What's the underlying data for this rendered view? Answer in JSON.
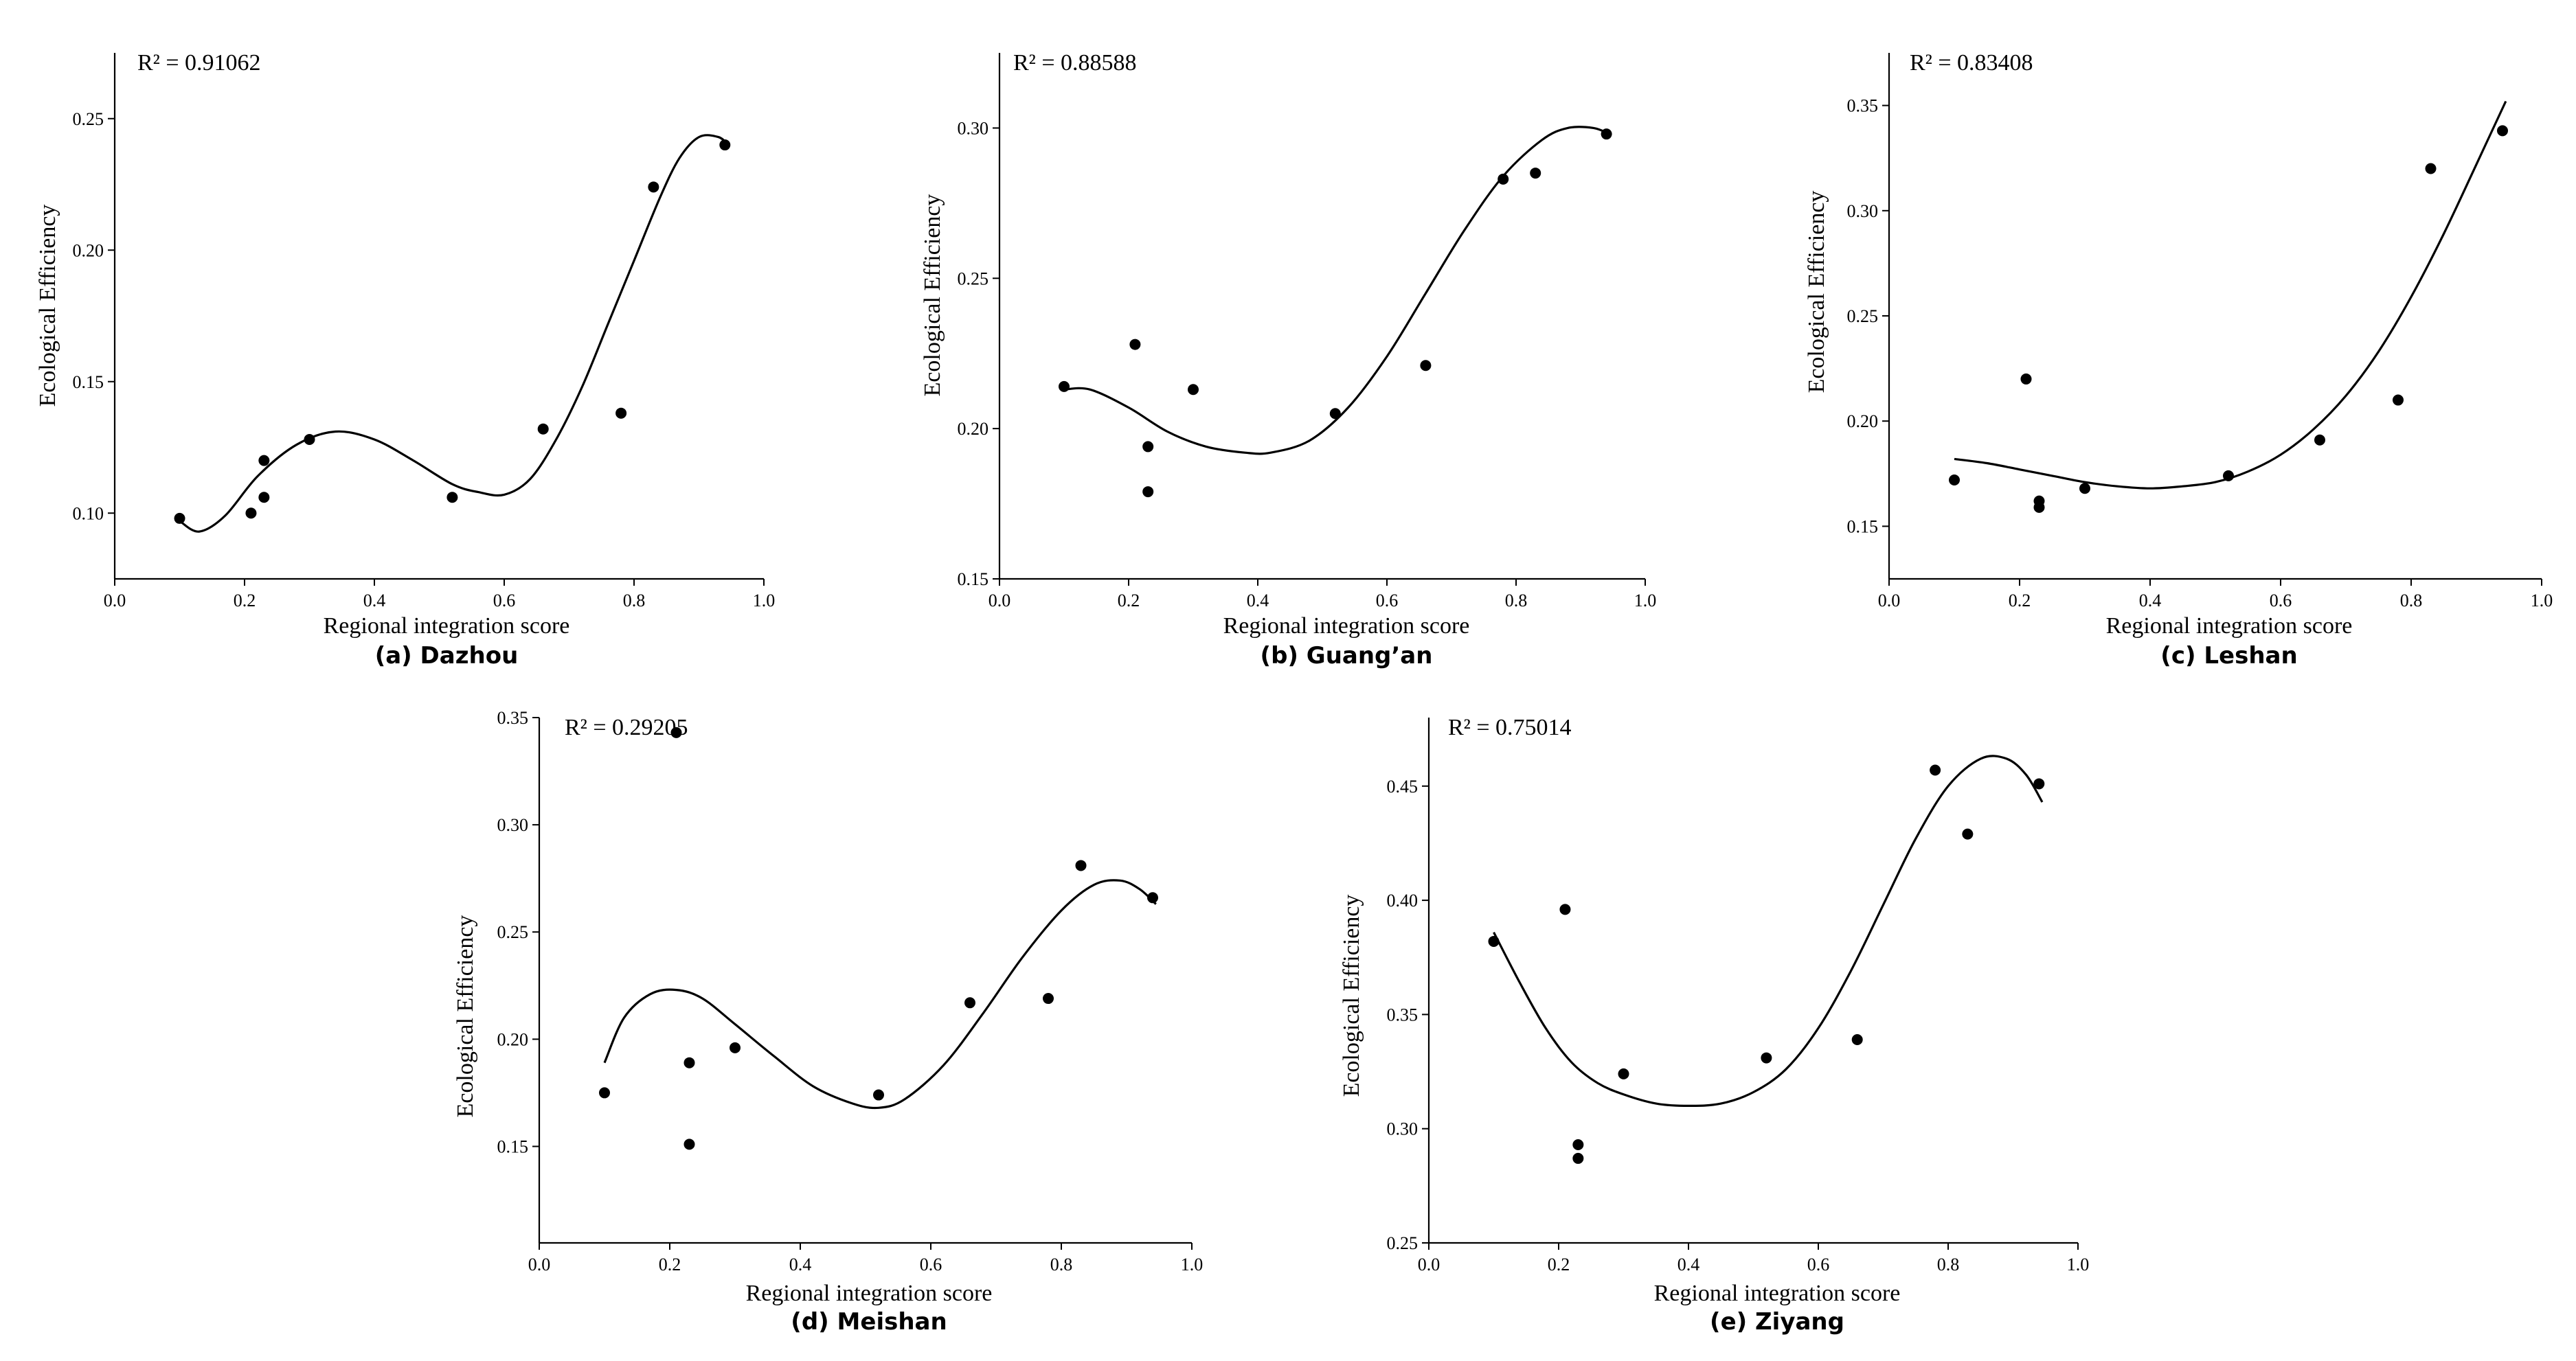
{
  "figure_caption_prefix": "",
  "chart_data": [
    {
      "type": "scatter",
      "id": "a",
      "caption": "(a)  Dazhou",
      "r2_label": "R² = 0.91062",
      "xlabel": "Regional integration score",
      "ylabel": "Ecological Efficiency",
      "xlim": [
        0.0,
        1.0
      ],
      "ylim": [
        0.075,
        0.275
      ],
      "xticks": [
        0.0,
        0.2,
        0.4,
        0.6,
        0.8,
        1.0
      ],
      "xtick_labels": [
        "0.0",
        "0.2",
        "0.4",
        "0.6",
        "0.8",
        "1.0"
      ],
      "yticks": [
        0.1,
        0.15,
        0.2,
        0.25
      ],
      "ytick_labels": [
        "0.10",
        "0.15",
        "0.20",
        "0.25"
      ],
      "x": [
        0.1,
        0.21,
        0.23,
        0.23,
        0.3,
        0.52,
        0.66,
        0.78,
        0.83,
        0.94
      ],
      "y": [
        0.098,
        0.1,
        0.12,
        0.106,
        0.128,
        0.106,
        0.132,
        0.138,
        0.224,
        0.24
      ],
      "fit_curve": {
        "x": [
          0.1,
          0.13,
          0.17,
          0.22,
          0.28,
          0.34,
          0.4,
          0.46,
          0.52,
          0.56,
          0.6,
          0.64,
          0.68,
          0.72,
          0.76,
          0.8,
          0.84,
          0.87,
          0.9,
          0.93,
          0.945
        ],
        "y": [
          0.097,
          0.093,
          0.099,
          0.114,
          0.126,
          0.131,
          0.128,
          0.12,
          0.111,
          0.108,
          0.107,
          0.113,
          0.128,
          0.148,
          0.172,
          0.196,
          0.22,
          0.235,
          0.243,
          0.243,
          0.24
        ]
      }
    },
    {
      "type": "scatter",
      "id": "b",
      "caption": "(b)  Guang’an",
      "r2_label": "R² = 0.88588",
      "xlabel": "Regional integration score",
      "ylabel": "Ecological Efficiency",
      "xlim": [
        0.0,
        1.0
      ],
      "ylim": [
        0.15,
        0.325
      ],
      "xticks": [
        0.0,
        0.2,
        0.4,
        0.6,
        0.8,
        1.0
      ],
      "xtick_labels": [
        "0.0",
        "0.2",
        "0.4",
        "0.6",
        "0.8",
        "1.0"
      ],
      "yticks": [
        0.15,
        0.2,
        0.25,
        0.3
      ],
      "ytick_labels": [
        "0.15",
        "0.20",
        "0.25",
        "0.30"
      ],
      "x": [
        0.1,
        0.21,
        0.23,
        0.23,
        0.3,
        0.52,
        0.66,
        0.78,
        0.83,
        0.94
      ],
      "y": [
        0.214,
        0.228,
        0.194,
        0.179,
        0.213,
        0.205,
        0.221,
        0.283,
        0.285,
        0.298
      ],
      "fit_curve": {
        "x": [
          0.1,
          0.14,
          0.2,
          0.26,
          0.32,
          0.38,
          0.42,
          0.48,
          0.54,
          0.6,
          0.66,
          0.72,
          0.78,
          0.84,
          0.88,
          0.92,
          0.945
        ],
        "y": [
          0.213,
          0.213,
          0.207,
          0.199,
          0.194,
          0.192,
          0.192,
          0.196,
          0.207,
          0.224,
          0.245,
          0.266,
          0.284,
          0.296,
          0.3,
          0.3,
          0.298
        ]
      }
    },
    {
      "type": "scatter",
      "id": "c",
      "caption": "(c)  Leshan",
      "r2_label": "R² = 0.83408",
      "xlabel": "Regional integration score",
      "ylabel": "Ecological Efficiency",
      "xlim": [
        0.0,
        1.0
      ],
      "ylim": [
        0.125,
        0.375
      ],
      "xticks": [
        0.0,
        0.2,
        0.4,
        0.6,
        0.8,
        1.0
      ],
      "xtick_labels": [
        "0.0",
        "0.2",
        "0.4",
        "0.6",
        "0.8",
        "1.0"
      ],
      "yticks": [
        0.15,
        0.2,
        0.25,
        0.3,
        0.35
      ],
      "ytick_labels": [
        "0.15",
        "0.20",
        "0.25",
        "0.30",
        "0.35"
      ],
      "x": [
        0.1,
        0.21,
        0.23,
        0.23,
        0.3,
        0.52,
        0.66,
        0.78,
        0.83,
        0.94
      ],
      "y": [
        0.172,
        0.22,
        0.162,
        0.159,
        0.168,
        0.174,
        0.191,
        0.21,
        0.32,
        0.338
      ],
      "fit_curve": {
        "x": [
          0.1,
          0.15,
          0.2,
          0.25,
          0.3,
          0.35,
          0.4,
          0.45,
          0.5,
          0.55,
          0.6,
          0.65,
          0.7,
          0.75,
          0.8,
          0.85,
          0.9,
          0.945
        ],
        "y": [
          0.182,
          0.18,
          0.177,
          0.174,
          0.171,
          0.169,
          0.168,
          0.169,
          0.171,
          0.176,
          0.184,
          0.196,
          0.212,
          0.233,
          0.259,
          0.289,
          0.322,
          0.352
        ]
      }
    },
    {
      "type": "scatter",
      "id": "d",
      "caption": "(d)  Meishan",
      "r2_label": "R² = 0.29205",
      "xlabel": "Regional integration score",
      "ylabel": "Ecological Efficiency",
      "xlim": [
        0.0,
        1.0
      ],
      "ylim": [
        0.105,
        0.35
      ],
      "xticks": [
        0.0,
        0.2,
        0.4,
        0.6,
        0.8,
        1.0
      ],
      "xtick_labels": [
        "0.0",
        "0.2",
        "0.4",
        "0.6",
        "0.8",
        "1.0"
      ],
      "yticks": [
        0.15,
        0.2,
        0.25,
        0.3,
        0.35
      ],
      "ytick_labels": [
        "0.15",
        "0.20",
        "0.25",
        "0.30",
        "0.35"
      ],
      "x": [
        0.1,
        0.21,
        0.23,
        0.23,
        0.3,
        0.52,
        0.66,
        0.78,
        0.83,
        0.94
      ],
      "y": [
        0.175,
        0.343,
        0.189,
        0.151,
        0.196,
        0.174,
        0.217,
        0.219,
        0.281,
        0.266
      ],
      "fit_curve": {
        "x": [
          0.1,
          0.13,
          0.17,
          0.21,
          0.25,
          0.3,
          0.36,
          0.42,
          0.48,
          0.52,
          0.56,
          0.62,
          0.68,
          0.74,
          0.8,
          0.85,
          0.89,
          0.92,
          0.945
        ],
        "y": [
          0.189,
          0.21,
          0.221,
          0.223,
          0.219,
          0.207,
          0.192,
          0.178,
          0.17,
          0.168,
          0.172,
          0.188,
          0.212,
          0.238,
          0.26,
          0.272,
          0.274,
          0.27,
          0.263
        ]
      }
    },
    {
      "type": "scatter",
      "id": "e",
      "caption": "(e)  Ziyang",
      "r2_label": "R² = 0.75014",
      "xlabel": "Regional integration score",
      "ylabel": "Ecological Efficiency",
      "xlim": [
        0.0,
        1.0
      ],
      "ylim": [
        0.25,
        0.48
      ],
      "xticks": [
        0.0,
        0.2,
        0.4,
        0.6,
        0.8,
        1.0
      ],
      "xtick_labels": [
        "0.0",
        "0.2",
        "0.4",
        "0.6",
        "0.8",
        "1.0"
      ],
      "yticks": [
        0.25,
        0.3,
        0.35,
        0.4,
        0.45
      ],
      "ytick_labels": [
        "0.25",
        "0.30",
        "0.35",
        "0.40",
        "0.45"
      ],
      "x": [
        0.1,
        0.21,
        0.23,
        0.23,
        0.3,
        0.52,
        0.66,
        0.78,
        0.83,
        0.94
      ],
      "y": [
        0.382,
        0.396,
        0.293,
        0.287,
        0.324,
        0.331,
        0.339,
        0.457,
        0.429,
        0.451
      ],
      "fit_curve": {
        "x": [
          0.1,
          0.14,
          0.18,
          0.22,
          0.26,
          0.3,
          0.35,
          0.4,
          0.45,
          0.5,
          0.55,
          0.6,
          0.65,
          0.7,
          0.75,
          0.8,
          0.85,
          0.89,
          0.92,
          0.945
        ],
        "y": [
          0.386,
          0.364,
          0.344,
          0.329,
          0.32,
          0.315,
          0.311,
          0.31,
          0.311,
          0.316,
          0.326,
          0.344,
          0.369,
          0.398,
          0.427,
          0.45,
          0.462,
          0.462,
          0.455,
          0.443
        ]
      }
    }
  ]
}
